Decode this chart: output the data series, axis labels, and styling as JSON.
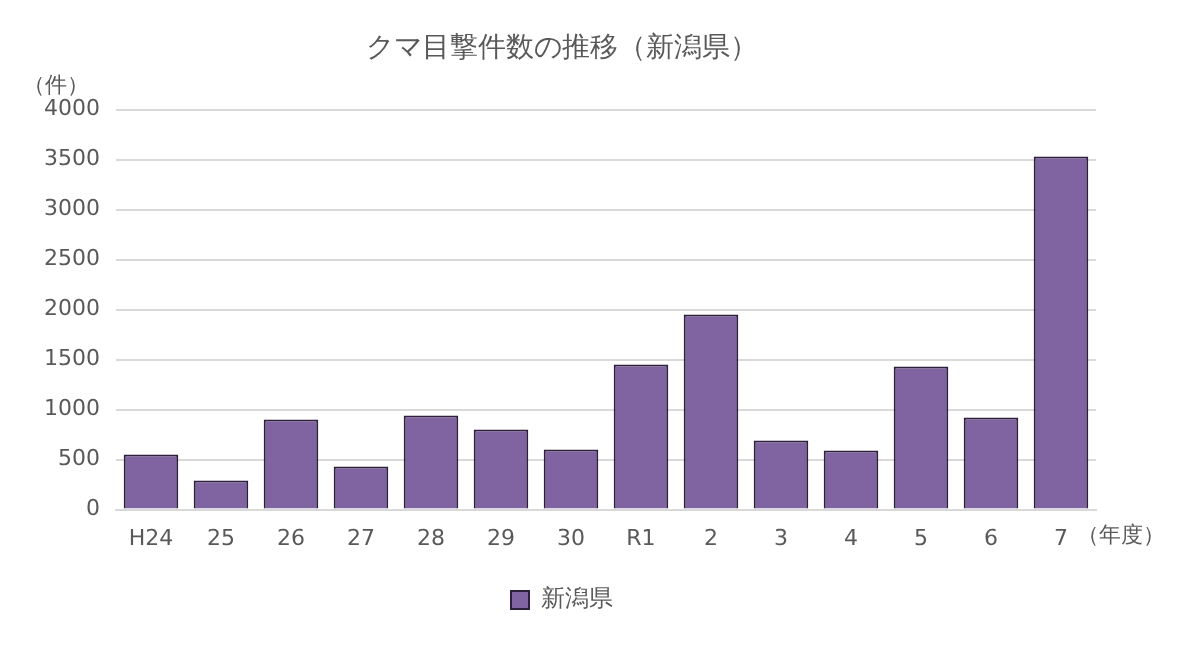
{
  "chart_data": {
    "type": "bar",
    "title": "クマ目撃件数の推移（新潟県）",
    "ylabel": "（件）",
    "xlabel": "（年度）",
    "categories": [
      "H24",
      "25",
      "26",
      "27",
      "28",
      "29",
      "30",
      "R1",
      "2",
      "3",
      "4",
      "5",
      "6",
      "7"
    ],
    "series": [
      {
        "name": "新潟県",
        "color": "#8064a2",
        "values": [
          550,
          290,
          900,
          430,
          940,
          800,
          600,
          1450,
          1950,
          690,
          590,
          1430,
          920,
          3530
        ]
      }
    ],
    "ylim": [
      0,
      4000
    ],
    "yticks": [
      0,
      500,
      1000,
      1500,
      2000,
      2500,
      3000,
      3500,
      4000
    ],
    "grid": "y",
    "legend": "bottom"
  }
}
